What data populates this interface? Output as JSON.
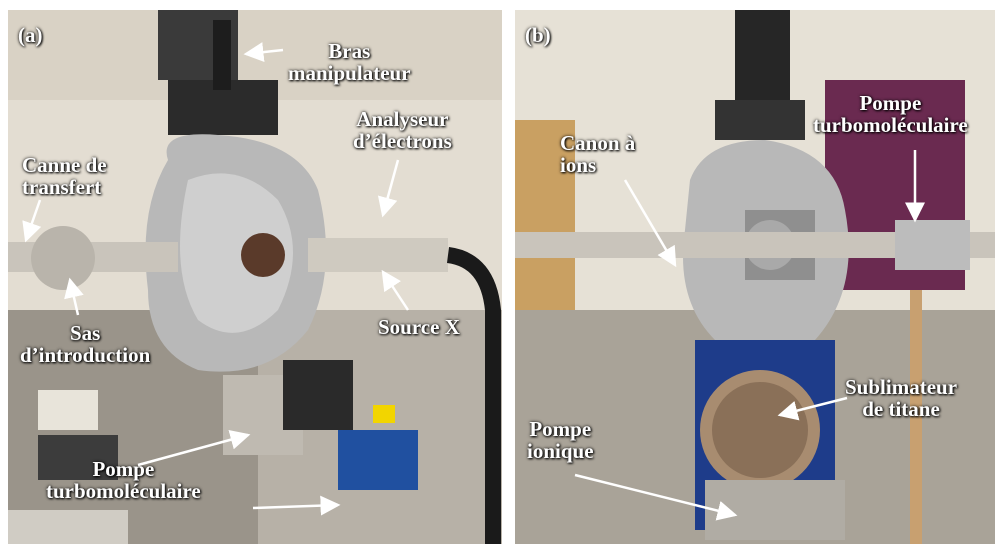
{
  "panel_a": {
    "tag": "(a)",
    "labels": {
      "bras": [
        "Bras",
        "manipulateur"
      ],
      "analyseur": [
        "Analyseur",
        "d’électrons"
      ],
      "canne": [
        "Canne de",
        "transfert"
      ],
      "sas": [
        "Sas",
        "d’introduction"
      ],
      "source": "Source X",
      "pompe": [
        "Pompe",
        "turbomoléculaire"
      ]
    }
  },
  "panel_b": {
    "tag": "(b)",
    "labels": {
      "canon": [
        "Canon à",
        "ions"
      ],
      "pompe_turbo": [
        "Pompe",
        "turbomoléculaire"
      ],
      "sublimateur": [
        "Sublimateur",
        "de titane"
      ],
      "pompe_ionique": [
        "Pompe",
        "ionique"
      ]
    }
  },
  "colors": {
    "label": "#ffffff",
    "foil": "#b8b8b8",
    "steel": "#c9c4bb",
    "wall": "#e3ddd2",
    "blue": "#1e3c8a"
  }
}
